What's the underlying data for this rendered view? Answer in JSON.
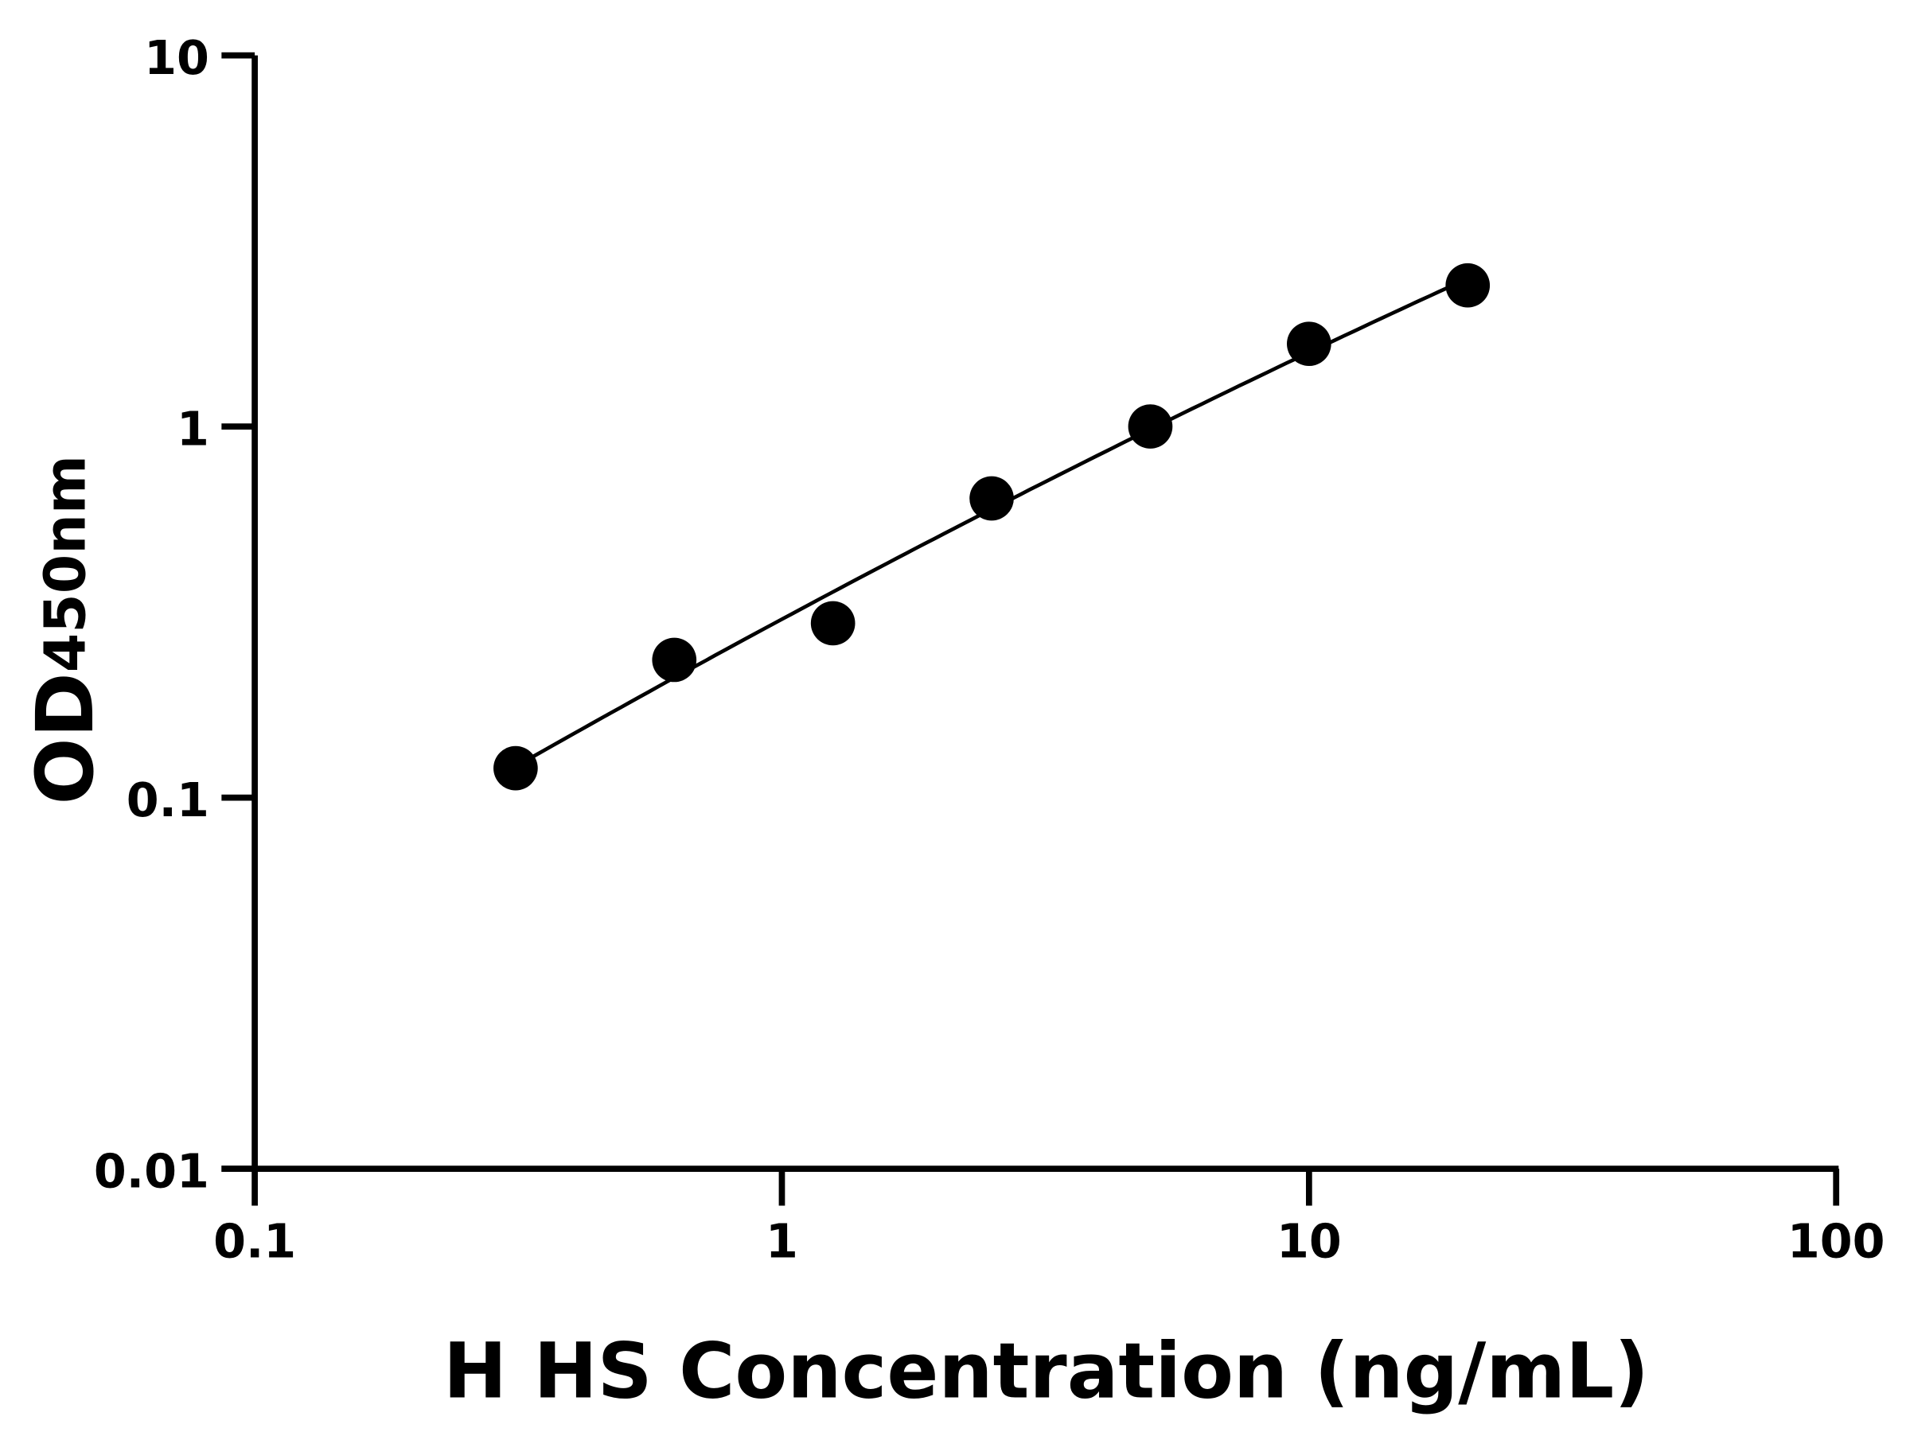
{
  "chart_data": {
    "type": "scatter",
    "xlabel": "H HS Concentration (ng/mL)",
    "ylabel_main": "OD",
    "ylabel_sub": "450nm",
    "x_scale": "log",
    "y_scale": "log",
    "xlim": [
      0.1,
      100
    ],
    "ylim": [
      0.01,
      10
    ],
    "x_ticks": [
      0.1,
      1,
      10,
      100
    ],
    "x_tick_labels": [
      "0.1",
      "1",
      "10",
      "100"
    ],
    "y_ticks": [
      0.01,
      0.1,
      1,
      10
    ],
    "y_tick_labels": [
      "0.01",
      "0.1",
      "1",
      "10"
    ],
    "grid": false,
    "fit_curve": true,
    "marker_color": "#000000",
    "line_color": "#000000",
    "x": [
      0.3125,
      0.625,
      1.25,
      2.5,
      5,
      10,
      20
    ],
    "y": [
      0.12,
      0.235,
      0.295,
      0.64,
      1.0,
      1.67,
      2.4
    ]
  }
}
